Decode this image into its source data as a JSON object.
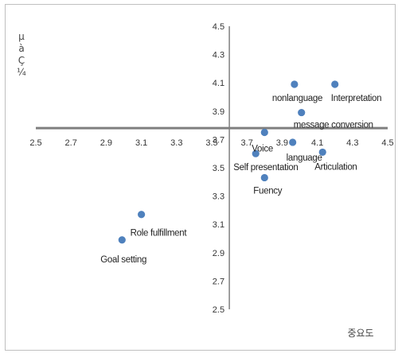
{
  "chart_data": {
    "type": "scatter",
    "title": "",
    "xlabel": "중요도",
    "ylabel_chars": [
      "µ",
      "à",
      "Ç",
      "¼"
    ],
    "xlim": [
      2.5,
      4.5
    ],
    "ylim": [
      2.5,
      4.5
    ],
    "x_ticks": [
      "2.5",
      "2.7",
      "2.9",
      "3.1",
      "3.3",
      "3.5",
      "3.7",
      "3.9",
      "4.1",
      "4.3",
      "4.5"
    ],
    "y_ticks": [
      "2.5",
      "2.7",
      "2.9",
      "3.1",
      "3.3",
      "3.5",
      "3.7",
      "3.9",
      "4.1",
      "4.3",
      "4.5"
    ],
    "crossing": {
      "x": 3.6,
      "y": 3.78
    },
    "grid": false,
    "legend": "none",
    "marker_color": "#4f81bd",
    "axis_color": "#7f7f7f",
    "points": [
      {
        "label": "nonlanguage",
        "x": 3.97,
        "y": 4.09
      },
      {
        "label": "Interpretation",
        "x": 4.2,
        "y": 4.09
      },
      {
        "label": "message conversion",
        "x": 4.01,
        "y": 3.89
      },
      {
        "label": "Voice",
        "x": 3.8,
        "y": 3.75
      },
      {
        "label": "language",
        "x": 3.96,
        "y": 3.68
      },
      {
        "label": "Articulation",
        "x": 4.13,
        "y": 3.61
      },
      {
        "label": "Self presentation",
        "x": 3.75,
        "y": 3.6
      },
      {
        "label": "Fuency",
        "x": 3.8,
        "y": 3.43
      },
      {
        "label": "Role fulfillment",
        "x": 3.1,
        "y": 3.17
      },
      {
        "label": "Goal setting",
        "x": 2.99,
        "y": 2.99
      }
    ]
  }
}
